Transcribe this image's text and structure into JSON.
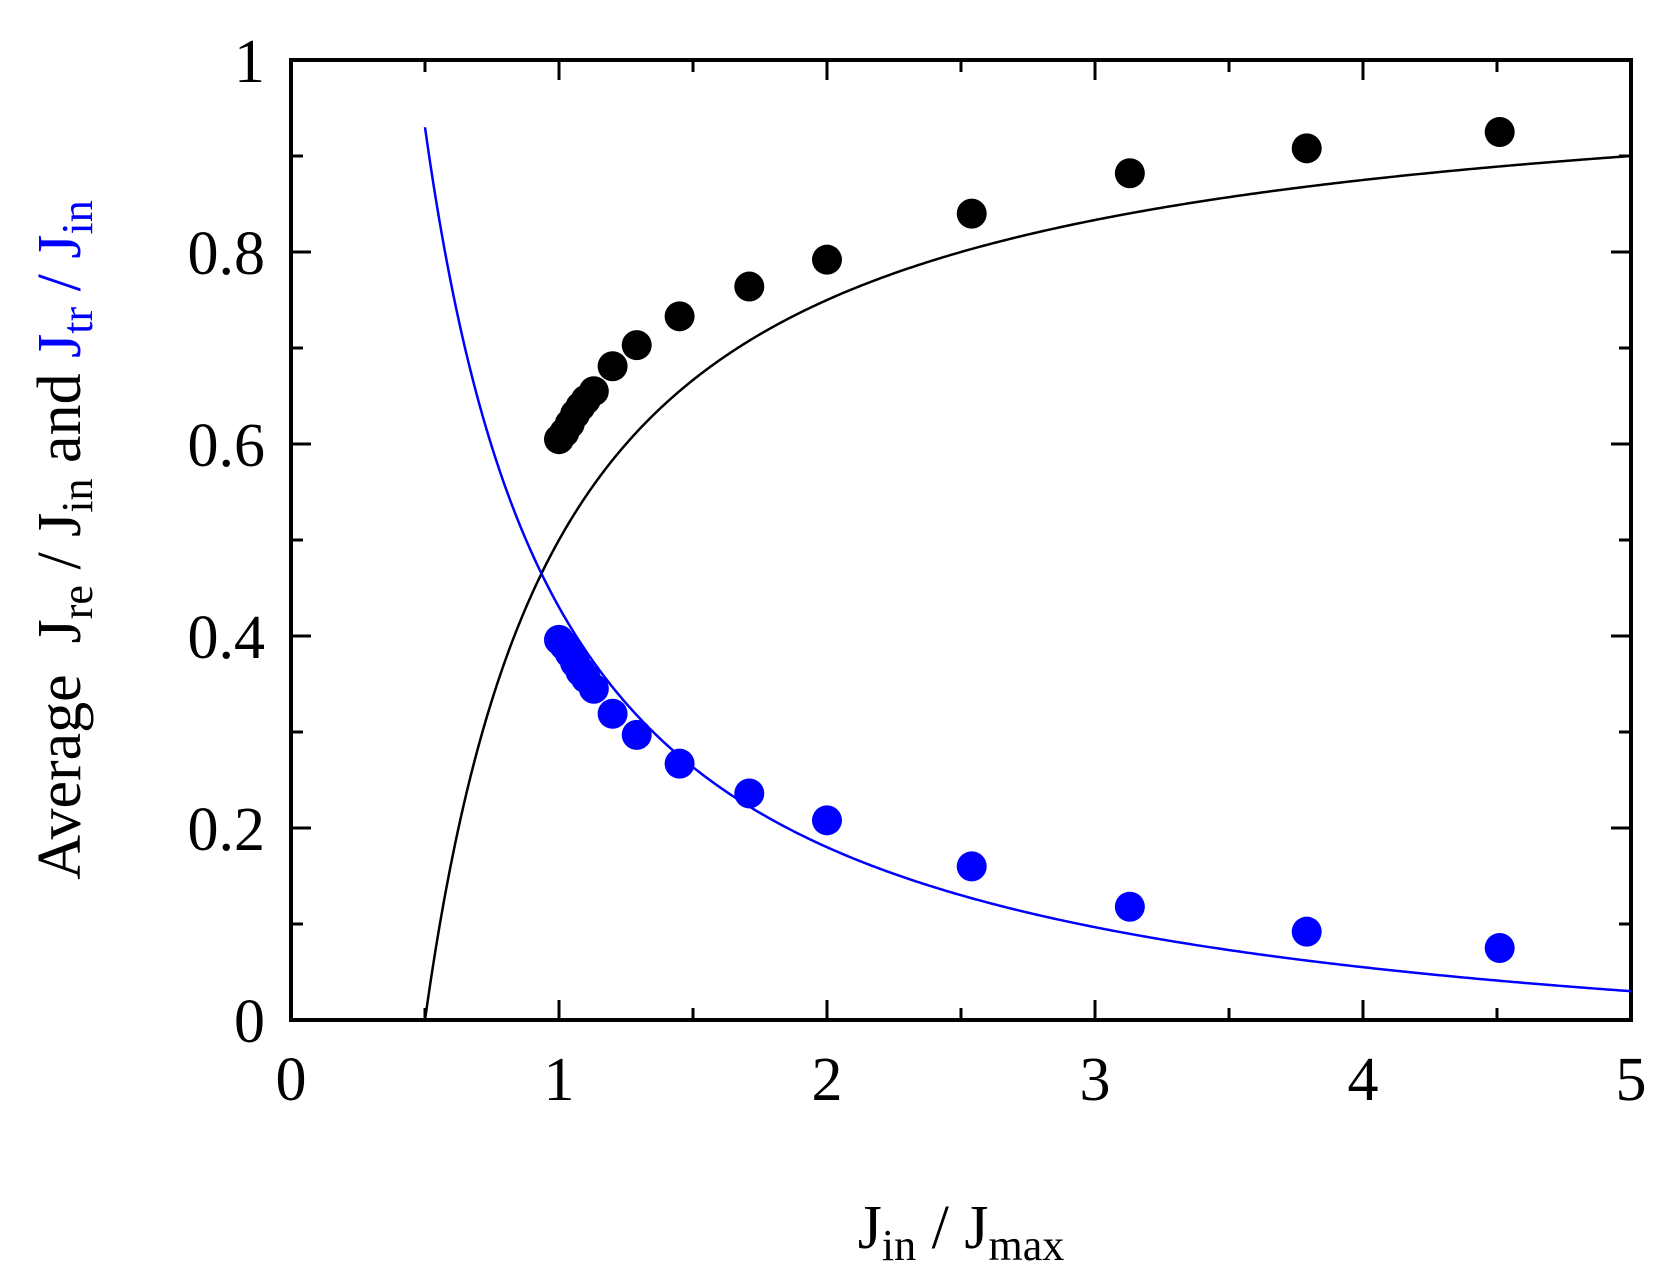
{
  "chart_data": {
    "type": "scatter",
    "title": "",
    "xlabel": {
      "main": "J",
      "sub_in": "in",
      "sep": " / ",
      "main2": "J",
      "sub_max": "max"
    },
    "ylabel": {
      "prefix": "Average  ",
      "black_part": {
        "main": "J",
        "sub": "re",
        "sep": " / ",
        "main2": "J",
        "sub2": "in"
      },
      "joiner": " and ",
      "blue_part": {
        "main": "J",
        "sub": "tr",
        "sep": " / ",
        "main2": "J",
        "sub2": "in"
      }
    },
    "xlim": [
      0,
      5
    ],
    "ylim": [
      0,
      1
    ],
    "x_ticks": [
      "0",
      "1",
      "2",
      "3",
      "4",
      "5"
    ],
    "y_ticks": [
      "0",
      "0.2",
      "0.4",
      "0.6",
      "0.8",
      "1"
    ],
    "grid": false,
    "legend": "none",
    "colors": {
      "re": "#000000",
      "tr": "#0000ff"
    },
    "series": [
      {
        "kind": "points",
        "color": "#000000",
        "x": [
          1.0,
          1.02,
          1.04,
          1.06,
          1.08,
          1.1,
          1.13,
          1.2,
          1.29,
          1.45,
          1.71,
          2.0,
          2.54,
          3.13,
          3.79,
          4.51
        ],
        "y": [
          0.605,
          0.612,
          0.621,
          0.631,
          0.639,
          0.646,
          0.655,
          0.681,
          0.703,
          0.733,
          0.764,
          0.792,
          0.84,
          0.882,
          0.908,
          0.925
        ]
      },
      {
        "kind": "points",
        "color": "#0000ff",
        "x": [
          1.0,
          1.02,
          1.04,
          1.06,
          1.08,
          1.1,
          1.13,
          1.2,
          1.29,
          1.45,
          1.71,
          2.0,
          2.54,
          3.13,
          3.79,
          4.51
        ],
        "y": [
          0.396,
          0.39,
          0.382,
          0.372,
          0.363,
          0.356,
          0.345,
          0.319,
          0.297,
          0.267,
          0.236,
          0.208,
          0.16,
          0.118,
          0.092,
          0.075
        ]
      },
      {
        "kind": "curve",
        "color": "#000000",
        "formula": "1 - 0.5/x",
        "x_range": [
          0.5,
          5
        ]
      },
      {
        "kind": "curve",
        "color": "#0000ff",
        "formula": "0.5/x - 0.07",
        "x_range": [
          0.5,
          5
        ]
      }
    ]
  }
}
